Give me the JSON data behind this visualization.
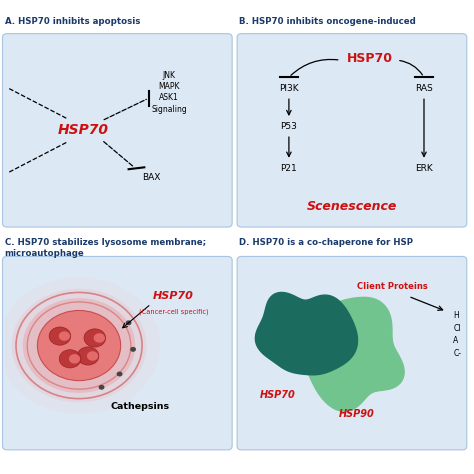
{
  "bg_color": "#ffffff",
  "panel_bg": "#dde8f5",
  "panel_border": "#a8c4e0",
  "title_color": "#1a3a6b",
  "red_color": "#cc1111",
  "black_color": "#111111",
  "dark_teal": "#1b6b5e",
  "light_teal": "#72c48e",
  "panel_A_title": "A. HSP70 inhibits apoptosis",
  "panel_B_title": "B. HSP70 inhibits oncogene-induced",
  "panel_C_title": "C. HSP70 stabilizes lysosome membrane;",
  "panel_C_subtitle": "microautophage",
  "panel_D_title": "D. HSP70 is a co-chaperone for HSP",
  "panel_B_scenescence": "Scenescence"
}
